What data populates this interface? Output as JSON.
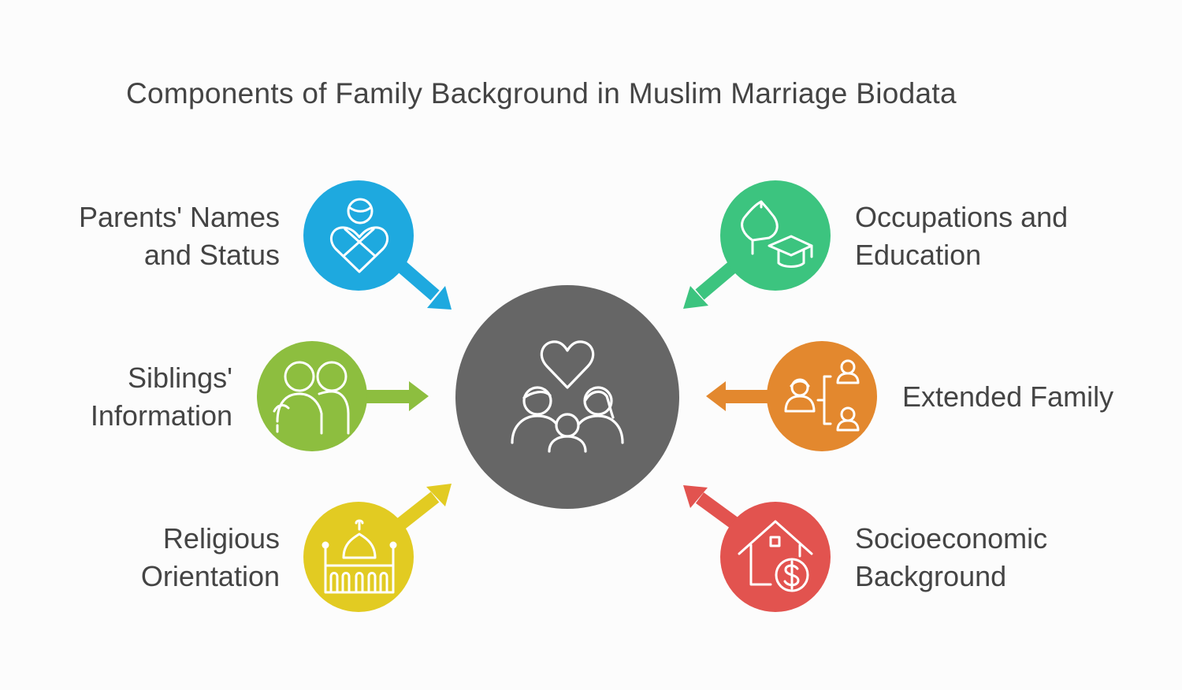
{
  "title": "Components of Family Background in Muslim Marriage Biodata",
  "center": {
    "icon": "family-heart-icon",
    "color": "#666666"
  },
  "nodes": [
    {
      "id": "parents",
      "lines": [
        "Parents' Names",
        "and Status"
      ],
      "icon": "person-heart-icon",
      "color": "#1ea9df"
    },
    {
      "id": "siblings",
      "lines": [
        "Siblings'",
        "Information"
      ],
      "icon": "siblings-icon",
      "color": "#8dbe3f"
    },
    {
      "id": "religious",
      "lines": [
        "Religious",
        "Orientation"
      ],
      "icon": "mosque-icon",
      "color": "#e2cb22"
    },
    {
      "id": "occupations",
      "lines": [
        "Occupations and",
        "Education"
      ],
      "icon": "graduation-cap-icon",
      "color": "#3cc47f"
    },
    {
      "id": "extended",
      "lines": [
        "Extended Family"
      ],
      "icon": "family-tree-icon",
      "color": "#e3882e"
    },
    {
      "id": "socioeconomic",
      "lines": [
        "Socioeconomic",
        "Background"
      ],
      "icon": "house-dollar-icon",
      "color": "#e2534f"
    }
  ]
}
